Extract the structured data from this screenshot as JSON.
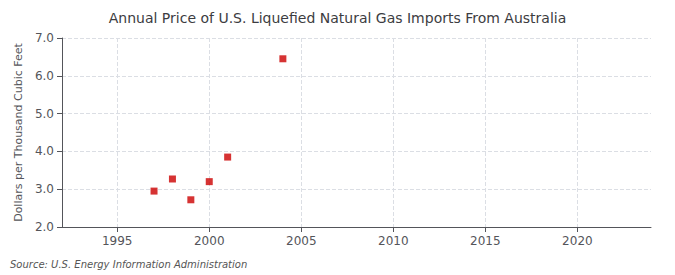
{
  "chart_data": {
    "type": "scatter",
    "title": "Annual Price of U.S. Liquefied Natural Gas Imports From Australia",
    "ylabel": "Dollars per Thousand Cubic Feet",
    "annotation": "Source: U.S. Energy Information Administration",
    "x": [
      1997,
      1998,
      1999,
      2000,
      2001,
      2004
    ],
    "values": [
      2.95,
      3.27,
      2.72,
      3.2,
      3.85,
      6.45
    ],
    "color": "#cc0000",
    "marker": "square",
    "xlim": [
      1992,
      2024
    ],
    "xticks": [
      1995,
      2000,
      2005,
      2010,
      2015,
      2020
    ],
    "ylim": [
      2.0,
      7.0
    ],
    "yticks": [
      {
        "value": 2.0,
        "label": "2.0"
      },
      {
        "value": 3.0,
        "label": "3.0"
      },
      {
        "value": 4.0,
        "label": "4.0"
      },
      {
        "value": 5.0,
        "label": "5.0"
      },
      {
        "value": 6.0,
        "label": "6.0"
      },
      {
        "value": 7.0,
        "label": "7.0"
      }
    ],
    "grid": true
  }
}
